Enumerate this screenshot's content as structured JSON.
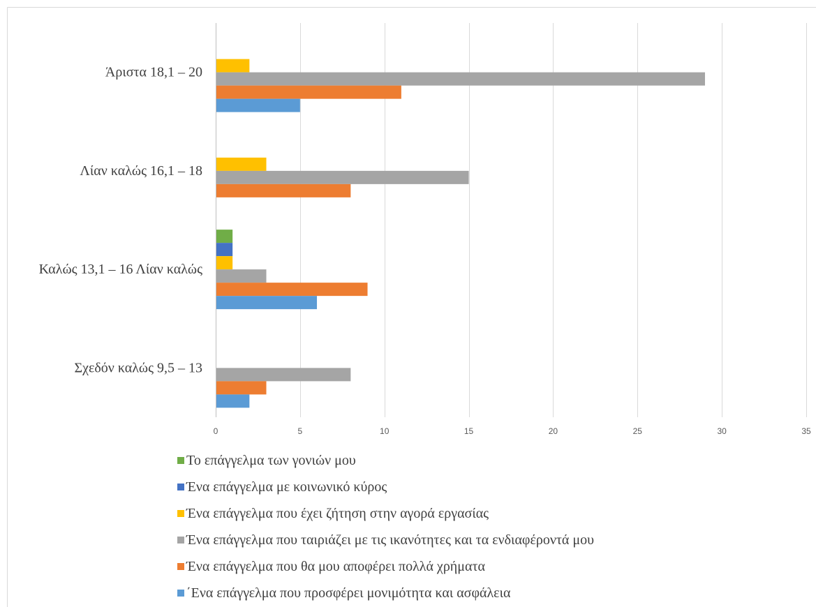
{
  "chart_data": {
    "type": "bar",
    "orientation": "horizontal",
    "categories": [
      "Άριστα 18,1 – 20",
      "Λίαν καλώς 16,1 – 18",
      "Καλώς 13,1 – 16 Λίαν καλώς",
      "Σχεδόν καλώς 9,5 – 13"
    ],
    "xlim": [
      0,
      35
    ],
    "xticks": [
      0,
      5,
      10,
      15,
      20,
      25,
      30,
      35
    ],
    "grid": true,
    "legend_position": "bottom",
    "series": [
      {
        "name": "Το επάγγελμα των γονιών μου",
        "color": "#70AD47",
        "values": [
          0,
          0,
          1,
          0
        ]
      },
      {
        "name": "Ένα επάγγελμα με κοινωνικό κύρος",
        "color": "#4472C4",
        "values": [
          0,
          0,
          1,
          0
        ]
      },
      {
        "name": "Ένα επάγγελμα που έχει ζήτηση στην αγορά εργασίας",
        "color": "#FFC000",
        "values": [
          2,
          3,
          1,
          0
        ]
      },
      {
        "name": "Ένα επάγγελμα που ταιριάζει με τις ικανότητες και τα ενδιαφέροντά μου",
        "color": "#A5A5A5",
        "values": [
          29,
          15,
          3,
          8
        ]
      },
      {
        "name": "Ένα επάγγελμα που θα μου αποφέρει πολλά χρήματα",
        "color": "#ED7D31",
        "values": [
          11,
          8,
          9,
          3
        ]
      },
      {
        "name": "΄Ενα επάγγελμα που προσφέρει μονιμότητα και ασφάλεια",
        "color": "#5B9BD5",
        "values": [
          5,
          0,
          6,
          2
        ]
      }
    ]
  }
}
